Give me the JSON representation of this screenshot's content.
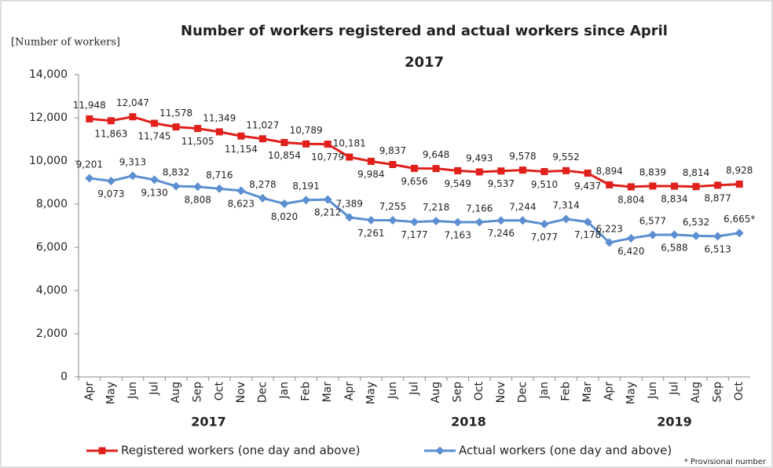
{
  "chart_data": {
    "type": "line",
    "title": "Number of workers registered and actual workers since April",
    "title_line2": "2017",
    "y_label": "[Number of workers]",
    "footnote": "* Provisional number",
    "categories": [
      "Apr",
      "May",
      "Jun",
      "Jul",
      "Aug",
      "Sep",
      "Oct",
      "Nov",
      "Dec",
      "Jan",
      "Feb",
      "Mar",
      "Apr",
      "May",
      "Jun",
      "Jul",
      "Aug",
      "Sep",
      "Oct",
      "Nov",
      "Dec",
      "Jan",
      "Feb",
      "Mar",
      "Apr",
      "May",
      "Jun",
      "Jul",
      "Aug",
      "Sep",
      "Oct"
    ],
    "year_labels": [
      "2017",
      "2018",
      "2019"
    ],
    "ylim": [
      0,
      14000
    ],
    "yticks": [
      0,
      {
        "value": 2000,
        "label": "2,000"
      },
      {
        "value": 4000,
        "label": "4,000"
      },
      {
        "value": 6000,
        "label": "6,000"
      },
      {
        "value": 8000,
        "label": "8,000"
      },
      {
        "value": 10000,
        "label": "10,000"
      },
      {
        "value": 12000,
        "label": "12,000"
      },
      {
        "value": 14000,
        "label": "14,000"
      }
    ],
    "grid": false,
    "series": [
      {
        "name": "Registered workers (one day and above)",
        "color": "#e0201b",
        "marker": "square",
        "values": [
          11948,
          11863,
          12047,
          11745,
          11578,
          11505,
          11349,
          11154,
          11027,
          10854,
          10789,
          10779,
          10181,
          9984,
          9837,
          9656,
          9648,
          9549,
          9493,
          9537,
          9578,
          9510,
          9552,
          9437,
          8894,
          8804,
          8839,
          8834,
          8814,
          8877,
          8928
        ],
        "value_labels": [
          "11,948",
          "11,863",
          "12,047",
          "11,745",
          "11,578",
          "11,505",
          "11,349",
          "11,154",
          "11,027",
          "10,854",
          "10,789",
          "10,779",
          "10,181",
          "9,984",
          "9,837",
          "9,656",
          "9,648",
          "9,549",
          "9,493",
          "9,537",
          "9,578",
          "9,510",
          "9,552",
          "9,437",
          "8,894",
          "8,804",
          "8,839",
          "8,834",
          "8,814",
          "8,877",
          "8,928"
        ]
      },
      {
        "name": "Actual workers (one day and above)",
        "color": "#5b8fd1",
        "marker": "diamond",
        "values": [
          9201,
          9073,
          9313,
          9130,
          8832,
          8808,
          8716,
          8623,
          8278,
          8020,
          8191,
          8212,
          7389,
          7261,
          7255,
          7177,
          7218,
          7163,
          7166,
          7246,
          7244,
          7077,
          7314,
          7178,
          6223,
          6420,
          6577,
          6588,
          6532,
          6513,
          6665
        ],
        "value_labels": [
          "9,201",
          "9,073",
          "9,313",
          "9,130",
          "8,832",
          "8,808",
          "8,716",
          "8,623",
          "8,278",
          "8,020",
          "8,191",
          "8,212",
          "7,389",
          "7,261",
          "7,255",
          "7,177",
          "7,218",
          "7,163",
          "7,166",
          "7,246",
          "7,244",
          "7,077",
          "7,314",
          "7,178",
          "6,223",
          "6,420",
          "6,577",
          "6,588",
          "6,532",
          "6,513",
          "6,665*"
        ]
      }
    ]
  }
}
